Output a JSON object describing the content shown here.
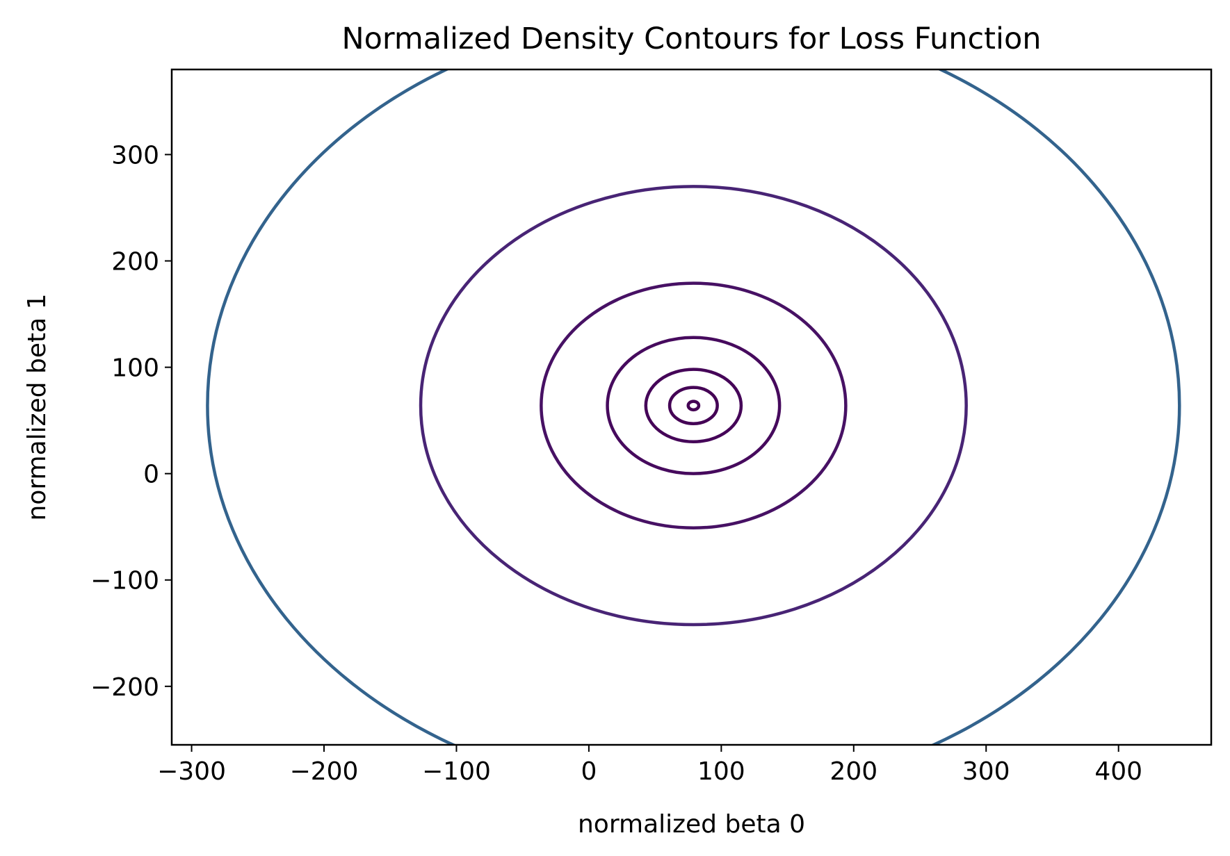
{
  "chart_data": {
    "type": "contour",
    "title": "Normalized Density Contours for Loss Function",
    "xlabel": "normalized beta 0",
    "ylabel": "normalized beta 1",
    "xlim": [
      -315,
      470
    ],
    "ylim": [
      -255,
      380
    ],
    "xticks": [
      -300,
      -200,
      -100,
      0,
      100,
      200,
      300,
      400
    ],
    "yticks": [
      -200,
      -100,
      0,
      100,
      200,
      300
    ],
    "xtick_labels": [
      "−300",
      "−200",
      "−100",
      "0",
      "100",
      "200",
      "300",
      "400"
    ],
    "ytick_labels": [
      "−200",
      "−100",
      "0",
      "100",
      "200",
      "300"
    ],
    "grid": false,
    "legend": "none",
    "center": [
      79,
      64
    ],
    "contours": [
      {
        "rx": 4,
        "ry": 4,
        "color": "#440154"
      },
      {
        "rx": 18,
        "ry": 17,
        "color": "#440255"
      },
      {
        "rx": 36,
        "ry": 34,
        "color": "#450558"
      },
      {
        "rx": 65,
        "ry": 64,
        "color": "#460a5d"
      },
      {
        "rx": 115,
        "ry": 115,
        "color": "#471164"
      },
      {
        "rx": 206,
        "ry": 206,
        "color": "#482475"
      },
      {
        "rx": 367,
        "ry": 367,
        "color": "#33638d"
      }
    ]
  }
}
